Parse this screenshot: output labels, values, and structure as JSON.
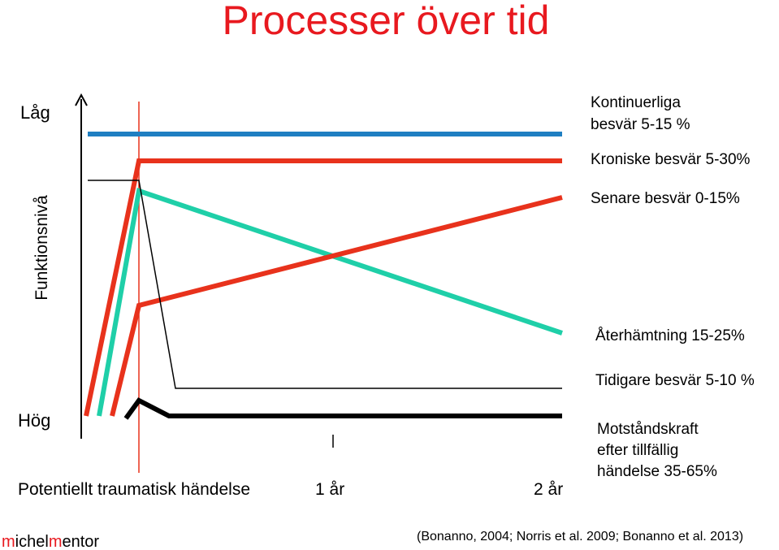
{
  "title": "Processer över tid",
  "axis": {
    "top": "Låg",
    "label": "Funktionsnivå",
    "bottom": "Hög"
  },
  "x_labels": {
    "event": "Potentiellt traumatisk händelse",
    "one_year": "1 år",
    "two_years": "2 år"
  },
  "curves": [
    {
      "lines": [
        "Kontinuerliga",
        "besvär 5-15 %"
      ]
    },
    {
      "lines": [
        "Kroniske besvär 5-30%"
      ]
    },
    {
      "lines": [
        "Senare besvär 0-15%"
      ]
    },
    {
      "lines": [
        "Återhämtning 15-25%"
      ]
    },
    {
      "lines": [
        "Tidigare besvär 5-10 %"
      ]
    },
    {
      "lines": [
        "Motståndskraft",
        "efter tillfällig",
        "händelse 35-65%"
      ]
    }
  ],
  "citation": "(Bonanno, 2004; Norris et al. 2009; Bonanno et al. 2013)",
  "logo": [
    "m",
    "ichel",
    "m",
    "entor"
  ]
}
